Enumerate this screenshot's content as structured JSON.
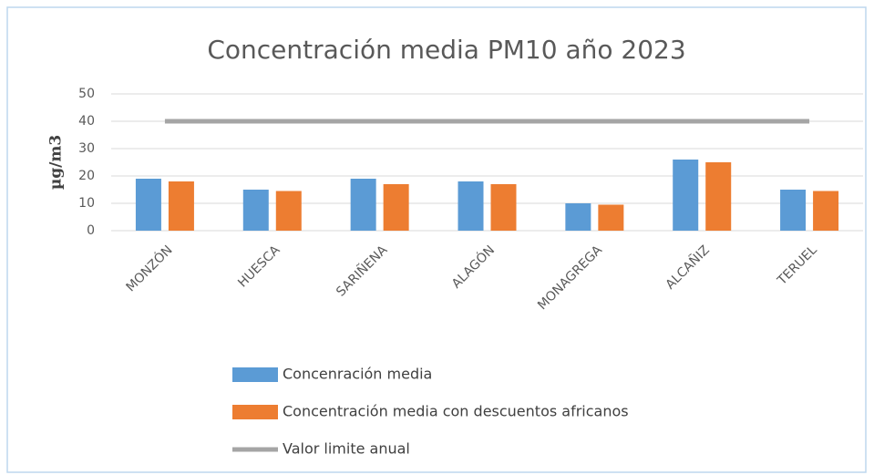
{
  "chart_data": {
    "type": "bar",
    "title": "Concentración media PM10 año 2023",
    "y_label": "µg/m3",
    "categories": [
      "MONZÓN",
      "HUESCA",
      "SARIÑENA",
      "ALAGÓN",
      "MONAGREGA",
      "ALCAÑIZ",
      "TERUEL"
    ],
    "series": [
      {
        "name": "Concenración media",
        "color": "#5b9bd5",
        "values": [
          19,
          15,
          19,
          18,
          10,
          26,
          15
        ]
      },
      {
        "name": "Concentración media con descuentos africanos",
        "color": "#ed7d31",
        "values": [
          18,
          14.5,
          17,
          17,
          9.5,
          25,
          14.5
        ]
      },
      {
        "name": "Valor limite anual",
        "color": "#a5a5a5",
        "type": "line",
        "values": [
          40,
          40,
          40,
          40,
          40,
          40,
          40
        ]
      }
    ],
    "ylim": [
      0,
      50
    ],
    "yticks": [
      0,
      10,
      20,
      30,
      40,
      50
    ],
    "grid": true,
    "legend": "bottom"
  }
}
